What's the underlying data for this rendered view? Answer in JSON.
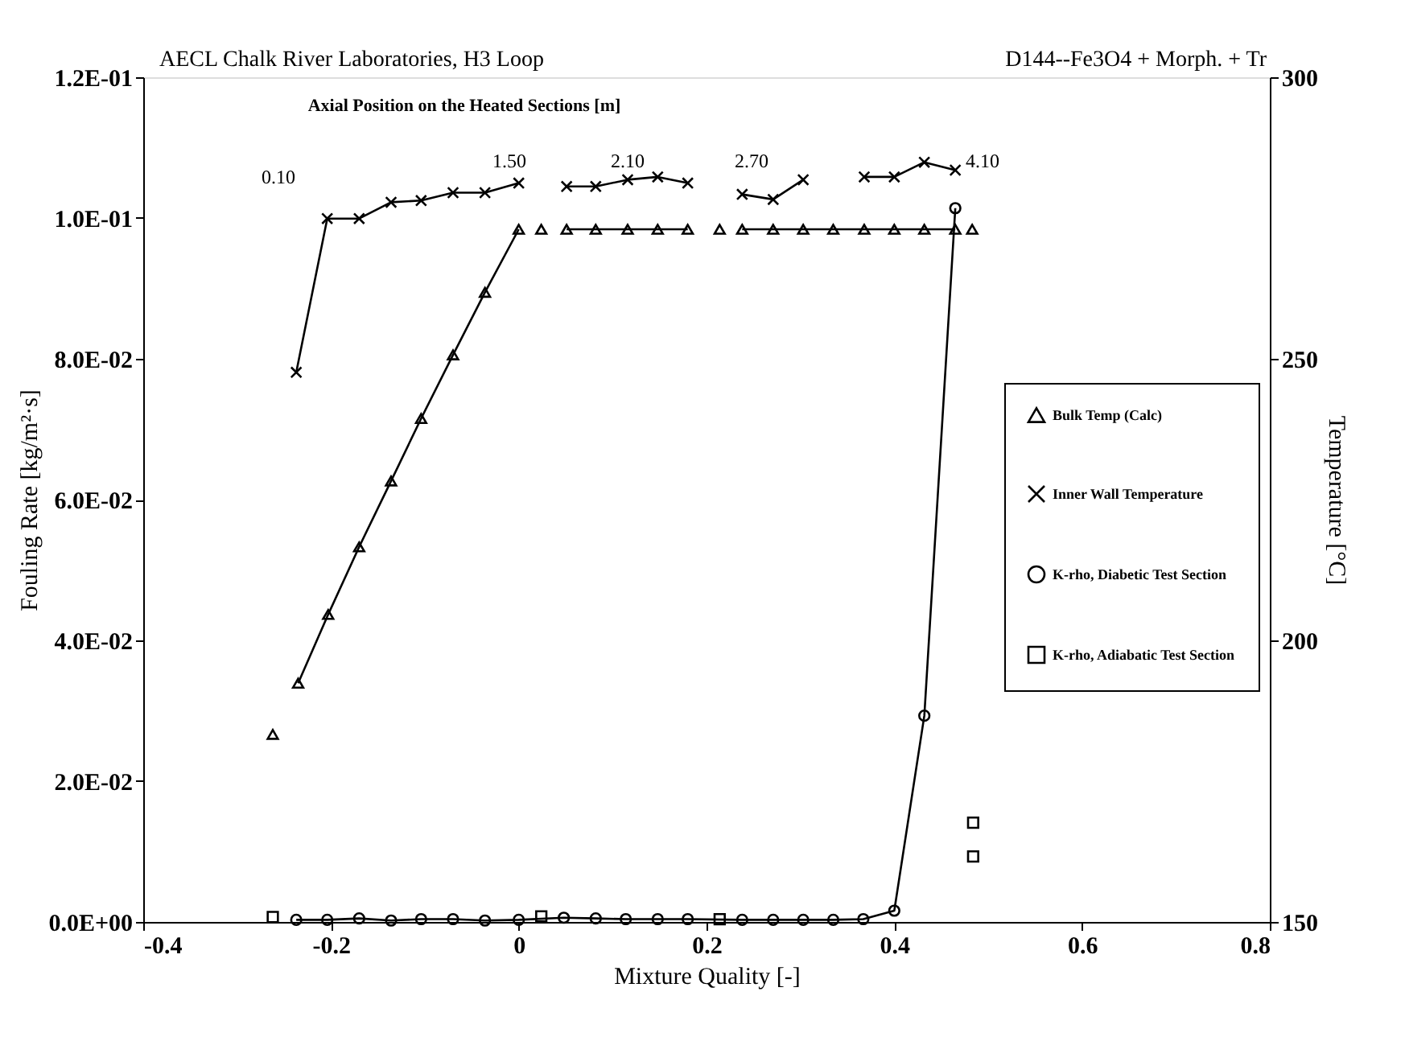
{
  "chart_data": {
    "type": "line",
    "title": "AECL Chalk River Laboratories, H3 Loop",
    "subtitle": "D144--Fe3O4 + Morph. + Tr",
    "xlabel": "Mixture Quality [-]",
    "ylabel": "Fouling Rate [kg/m²·s]",
    "y2label": "Temperature [°C]",
    "xlim": [
      -0.4,
      0.8
    ],
    "xticks": [
      -0.4,
      -0.2,
      0,
      0.2,
      0.4,
      0.6,
      0.8
    ],
    "ylim": [
      0,
      0.12
    ],
    "yticks": [
      {
        "value": 0,
        "label": "0.0E+00"
      },
      {
        "value": 0.02,
        "label": "2.0E-02"
      },
      {
        "value": 0.04,
        "label": "4.0E-02"
      },
      {
        "value": 0.06,
        "label": "6.0E-02"
      },
      {
        "value": 0.08,
        "label": "8.0E-02"
      },
      {
        "value": 0.1,
        "label": "1.0E-01"
      },
      {
        "value": 0.12,
        "label": "1.2E-01"
      }
    ],
    "y2lim": [
      150,
      300
    ],
    "y2ticks": [
      150,
      200,
      250,
      300
    ],
    "grid": false,
    "legend": "right",
    "annotations": [
      "Axial Position on the Heated Sections [m]",
      "0.10",
      "1.50",
      "2.10",
      "2.70",
      "4.10"
    ],
    "series": [
      {
        "name": "Bulk Temp (Calc)",
        "axis": "y2",
        "marker": "triangle",
        "color": "#000000",
        "x": [
          -0.262,
          null,
          -0.235,
          -0.203,
          -0.17,
          -0.136,
          -0.104,
          -0.07,
          -0.036,
          0.0,
          null,
          0.024,
          null,
          0.051,
          0.082,
          0.116,
          0.148,
          0.18,
          null,
          0.214,
          null,
          0.238,
          0.271,
          0.303,
          0.335,
          0.368,
          0.4,
          0.432,
          0.465,
          null,
          0.483
        ],
        "values": [
          183.3,
          null,
          192.4,
          204.6,
          216.6,
          228.3,
          239.4,
          250.7,
          261.8,
          273,
          null,
          273,
          null,
          273,
          273,
          273,
          273,
          273,
          null,
          273,
          null,
          273,
          273,
          273,
          273,
          273,
          273,
          273,
          273,
          null,
          273
        ]
      },
      {
        "name": "Inner Wall Temperature",
        "axis": "y2",
        "marker": "cross",
        "color": "#000000",
        "x": [
          -0.237,
          -0.204,
          -0.17,
          -0.136,
          -0.104,
          -0.07,
          -0.036,
          0.0,
          null,
          0.051,
          0.082,
          0.116,
          0.148,
          0.18,
          null,
          0.238,
          0.271,
          0.303,
          null,
          0.368,
          0.4,
          0.432,
          0.465
        ],
        "values": [
          247.6,
          274.9,
          274.9,
          277.8,
          278.1,
          279.5,
          279.5,
          281.2,
          null,
          280.6,
          280.6,
          281.8,
          282.3,
          281.2,
          null,
          279.2,
          278.3,
          281.8,
          null,
          282.3,
          282.3,
          284.9,
          283.5
        ]
      },
      {
        "name": "K-rho, Diabetic Test Section",
        "marker": "circle",
        "color": "#000000",
        "x": [
          -0.237,
          -0.204,
          -0.17,
          -0.136,
          -0.104,
          -0.07,
          -0.036,
          0.0,
          0.048,
          0.082,
          0.114,
          0.148,
          0.18,
          0.238,
          0.271,
          0.303,
          0.335,
          0.367,
          0.4,
          0.432,
          0.465
        ],
        "values": [
          0.0003,
          0.0003,
          0.0005,
          0.0002,
          0.0004,
          0.0004,
          0.0002,
          0.0003,
          0.0006,
          0.0005,
          0.0004,
          0.0004,
          0.0004,
          0.0003,
          0.0003,
          0.0003,
          0.0003,
          0.0004,
          0.0016,
          0.0293,
          0.1014
        ]
      },
      {
        "name": "K-rho, Adiabatic Test Section",
        "type": "scatter",
        "marker": "square",
        "color": "#000000",
        "x": [
          -0.262,
          0.024,
          0.214,
          0.484,
          0.484
        ],
        "values": [
          0.0007,
          0.0008,
          0.0004,
          0.0141,
          0.0093
        ]
      }
    ]
  }
}
